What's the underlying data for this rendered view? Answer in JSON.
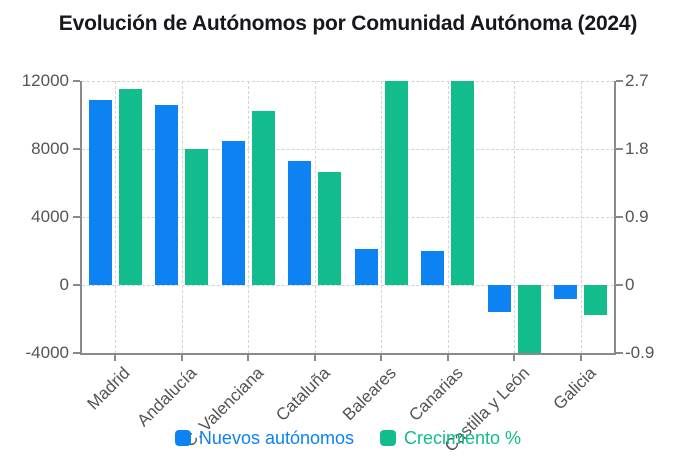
{
  "title": "Evolución de Autónomos por Comunidad Autónoma (2024)",
  "colors": {
    "bar_blue": "#0d82f2",
    "bar_green": "#12bc8c",
    "grid": "#d3d3d3",
    "axis": "#8a8a8a",
    "tick_text": "#545454",
    "title_text": "#16181d",
    "background": "#ffffff"
  },
  "legend": {
    "position": "bottom",
    "items": [
      {
        "label": "Nuevos autónomos",
        "color": "#0d82f2"
      },
      {
        "label": "Crecimiento %",
        "color": "#12bc8c"
      }
    ]
  },
  "chart_data": {
    "type": "bar",
    "title": "Evolución de Autónomos por Comunidad Autónoma (2024)",
    "categories": [
      "Madrid",
      "Andalucía",
      "C. Valenciana",
      "Cataluña",
      "Baleares",
      "Canarias",
      "Castilla y León",
      "Galicia"
    ],
    "series": [
      {
        "name": "Nuevos autónomos",
        "yaxis": "left",
        "color": "#0d82f2",
        "values": [
          10900,
          10600,
          8500,
          7300,
          2100,
          2000,
          -1600,
          -800
        ]
      },
      {
        "name": "Crecimiento %",
        "yaxis": "right",
        "color": "#12bc8c",
        "values": [
          2.6,
          1.8,
          2.3,
          1.5,
          2.7,
          2.7,
          -0.9,
          -0.4
        ]
      }
    ],
    "left_axis": {
      "range": [
        -4000,
        12000
      ],
      "ticks": [
        12000,
        8000,
        4000,
        0,
        -4000
      ]
    },
    "right_axis": {
      "range": [
        -0.9,
        2.7
      ],
      "ticks": [
        2.7,
        1.8,
        0.9,
        0,
        -0.9
      ]
    },
    "grid": "dashed",
    "legend_position": "bottom",
    "bar_orientation": "vertical"
  }
}
